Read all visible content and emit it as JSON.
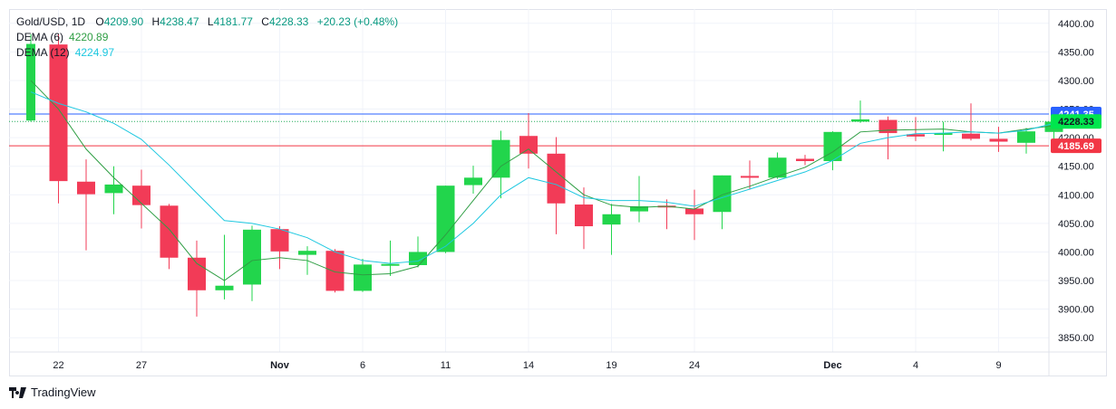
{
  "legend": {
    "symbol": "Gold/USD",
    "interval": "1D",
    "o_label": "O",
    "o": "4209.90",
    "h_label": "H",
    "h": "4238.47",
    "l_label": "L",
    "l": "4181.77",
    "c_label": "C",
    "c": "4228.33",
    "change": "+20.23 (+0.48%)",
    "dema6_label": "DEMA (6)",
    "dema6_value": "4220.89",
    "dema12_label": "DEMA (12)",
    "dema12_value": "4224.97"
  },
  "brand": {
    "name": "TradingView"
  },
  "price_tags": [
    {
      "value": 4241.35,
      "label": "4241.35",
      "color": "#2962ff",
      "text_color": "#ffffff"
    },
    {
      "value": 4228.33,
      "label": "4228.33",
      "color": "#00e64d",
      "text_color": "#131722"
    },
    {
      "value": 4185.69,
      "label": "4185.69",
      "color": "#f23645",
      "text_color": "#ffffff"
    }
  ],
  "colors": {
    "up": "#22d54c",
    "down": "#f23b57",
    "dema6": "#2f9e44",
    "dema12": "#1ec8e0",
    "grid": "#f0f3fa"
  },
  "chart_data": {
    "type": "candlestick",
    "title": "Gold/USD, 1D",
    "xlabel": "",
    "ylabel": "",
    "ylim": [
      3825,
      4425
    ],
    "y_ticks": [
      3850,
      3900,
      3950,
      4000,
      4050,
      4100,
      4150,
      4200,
      4250,
      4300,
      4350,
      4400
    ],
    "x_tick_labels": [
      {
        "label": "22",
        "index": 1
      },
      {
        "label": "27",
        "index": 4
      },
      {
        "label": "Nov",
        "index": 9
      },
      {
        "label": "6",
        "index": 12
      },
      {
        "label": "11",
        "index": 15
      },
      {
        "label": "14",
        "index": 18
      },
      {
        "label": "19",
        "index": 21
      },
      {
        "label": "24",
        "index": 24
      },
      {
        "label": "Dec",
        "index": 29
      },
      {
        "label": "4",
        "index": 32
      },
      {
        "label": "9",
        "index": 35
      }
    ],
    "candles": [
      {
        "o": 4230,
        "h": 4381,
        "l": 4228,
        "c": 4364
      },
      {
        "o": 4363,
        "h": 4381,
        "l": 4085,
        "c": 4124
      },
      {
        "o": 4123,
        "h": 4162,
        "l": 4003,
        "c": 4101
      },
      {
        "o": 4103,
        "h": 4150,
        "l": 4066,
        "c": 4118
      },
      {
        "o": 4116,
        "h": 4144,
        "l": 4041,
        "c": 4082
      },
      {
        "o": 4081,
        "h": 4084,
        "l": 3970,
        "c": 3990
      },
      {
        "o": 3990,
        "h": 4020,
        "l": 3887,
        "c": 3933
      },
      {
        "o": 3933,
        "h": 4030,
        "l": 3917,
        "c": 3941
      },
      {
        "o": 3943,
        "h": 4046,
        "l": 3914,
        "c": 4039
      },
      {
        "o": 4040,
        "h": 4045,
        "l": 3970,
        "c": 4001
      },
      {
        "o": 3995,
        "h": 4010,
        "l": 3960,
        "c": 4002
      },
      {
        "o": 4002,
        "h": 4005,
        "l": 3929,
        "c": 3932
      },
      {
        "o": 3932,
        "h": 3988,
        "l": 3930,
        "c": 3978
      },
      {
        "o": 3978,
        "h": 4020,
        "l": 3958,
        "c": 3979
      },
      {
        "o": 3977,
        "h": 4027,
        "l": 3973,
        "c": 4000
      },
      {
        "o": 4000,
        "h": 4116,
        "l": 3998,
        "c": 4116
      },
      {
        "o": 4117,
        "h": 4151,
        "l": 4102,
        "c": 4130
      },
      {
        "o": 4130,
        "h": 4212,
        "l": 4094,
        "c": 4196
      },
      {
        "o": 4203,
        "h": 4243,
        "l": 4146,
        "c": 4172
      },
      {
        "o": 4172,
        "h": 4201,
        "l": 4031,
        "c": 4085
      },
      {
        "o": 4083,
        "h": 4113,
        "l": 4005,
        "c": 4045
      },
      {
        "o": 4048,
        "h": 4084,
        "l": 3995,
        "c": 4066
      },
      {
        "o": 4071,
        "h": 4133,
        "l": 4052,
        "c": 4080
      },
      {
        "o": 4081,
        "h": 4092,
        "l": 4040,
        "c": 4080
      },
      {
        "o": 4076,
        "h": 4109,
        "l": 4021,
        "c": 4066
      },
      {
        "o": 4070,
        "h": 4134,
        "l": 4040,
        "c": 4134
      },
      {
        "o": 4133,
        "h": 4160,
        "l": 4109,
        "c": 4130
      },
      {
        "o": 4130,
        "h": 4174,
        "l": 4128,
        "c": 4165
      },
      {
        "o": 4163,
        "h": 4170,
        "l": 4152,
        "c": 4159
      },
      {
        "o": 4159,
        "h": 4211,
        "l": 4143,
        "c": 4210
      },
      {
        "o": 4228,
        "h": 4265,
        "l": 4226,
        "c": 4232
      },
      {
        "o": 4231,
        "h": 4237,
        "l": 4162,
        "c": 4208
      },
      {
        "o": 4206,
        "h": 4236,
        "l": 4194,
        "c": 4202
      },
      {
        "o": 4205,
        "h": 4228,
        "l": 4176,
        "c": 4208
      },
      {
        "o": 4207,
        "h": 4260,
        "l": 4195,
        "c": 4198
      },
      {
        "o": 4198,
        "h": 4219,
        "l": 4175,
        "c": 4193
      },
      {
        "o": 4191,
        "h": 4217,
        "l": 4172,
        "c": 4211
      },
      {
        "o": 4210,
        "h": 4238,
        "l": 4182,
        "c": 4228
      }
    ],
    "series": [
      {
        "name": "DEMA (6)",
        "values": [
          4300,
          4250,
          4180,
          4130,
          4085,
          4040,
          3980,
          3950,
          3985,
          3990,
          3985,
          3965,
          3960,
          3962,
          3975,
          4030,
          4090,
          4150,
          4180,
          4140,
          4100,
          4082,
          4078,
          4080,
          4075,
          4100,
          4115,
          4132,
          4148,
          4175,
          4210,
          4213,
          4214,
          4215,
          4210,
          4208,
          4215,
          4221
        ]
      },
      {
        "name": "DEMA (12)",
        "values": [
          4280,
          4260,
          4245,
          4225,
          4197,
          4152,
          4103,
          4055,
          4050,
          4040,
          4025,
          4000,
          3985,
          3980,
          3984,
          4010,
          4050,
          4100,
          4130,
          4118,
          4095,
          4090,
          4090,
          4087,
          4080,
          4095,
          4110,
          4125,
          4140,
          4160,
          4190,
          4200,
          4207,
          4208,
          4210,
          4208,
          4213,
          4225
        ]
      }
    ],
    "price_lines": [
      4241.35,
      4228.33,
      4185.69
    ]
  }
}
